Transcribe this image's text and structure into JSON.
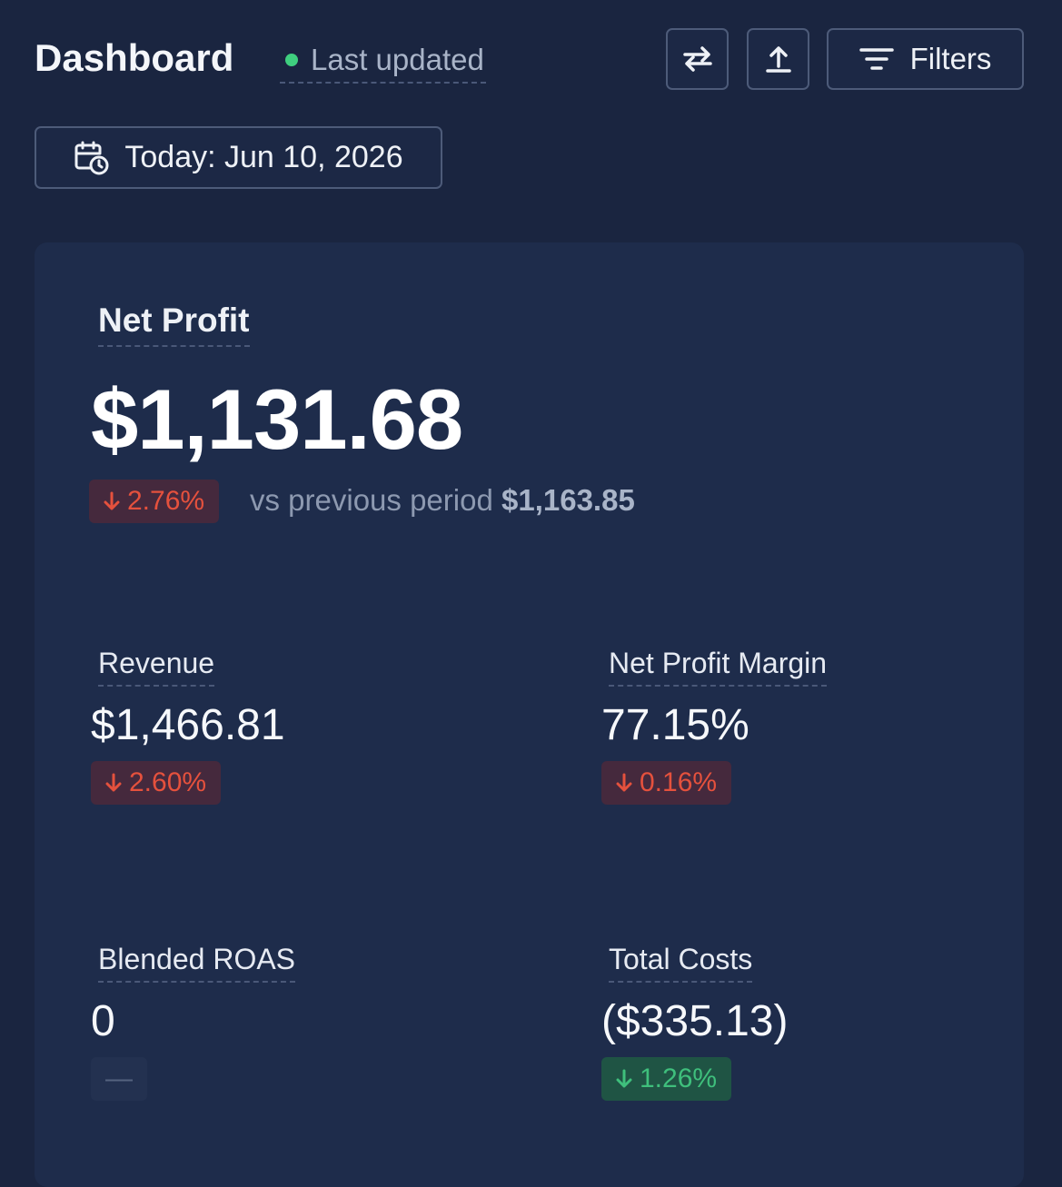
{
  "header": {
    "title": "Dashboard",
    "status": "Last updated",
    "filters_button": "Filters",
    "date_button": "Today: Jun 10, 2026"
  },
  "hero": {
    "label": "Net Profit",
    "value": "$1,131.68",
    "change": "2.76%",
    "tone": "negative",
    "comparison": "vs previous period",
    "previous_value": "$1,163.85"
  },
  "metrics": [
    {
      "label": "Revenue",
      "value": "$1,466.81",
      "change": "2.60%",
      "tone": "negative"
    },
    {
      "label": "Net Profit Margin",
      "value": "77.15%",
      "change": "0.16%",
      "tone": "negative"
    },
    {
      "label": "Blended ROAS",
      "value": "0",
      "change": "—",
      "tone": "neutral"
    },
    {
      "label": "Total Costs",
      "value": "($335.13)",
      "change": "1.26%",
      "tone": "positive"
    }
  ]
}
